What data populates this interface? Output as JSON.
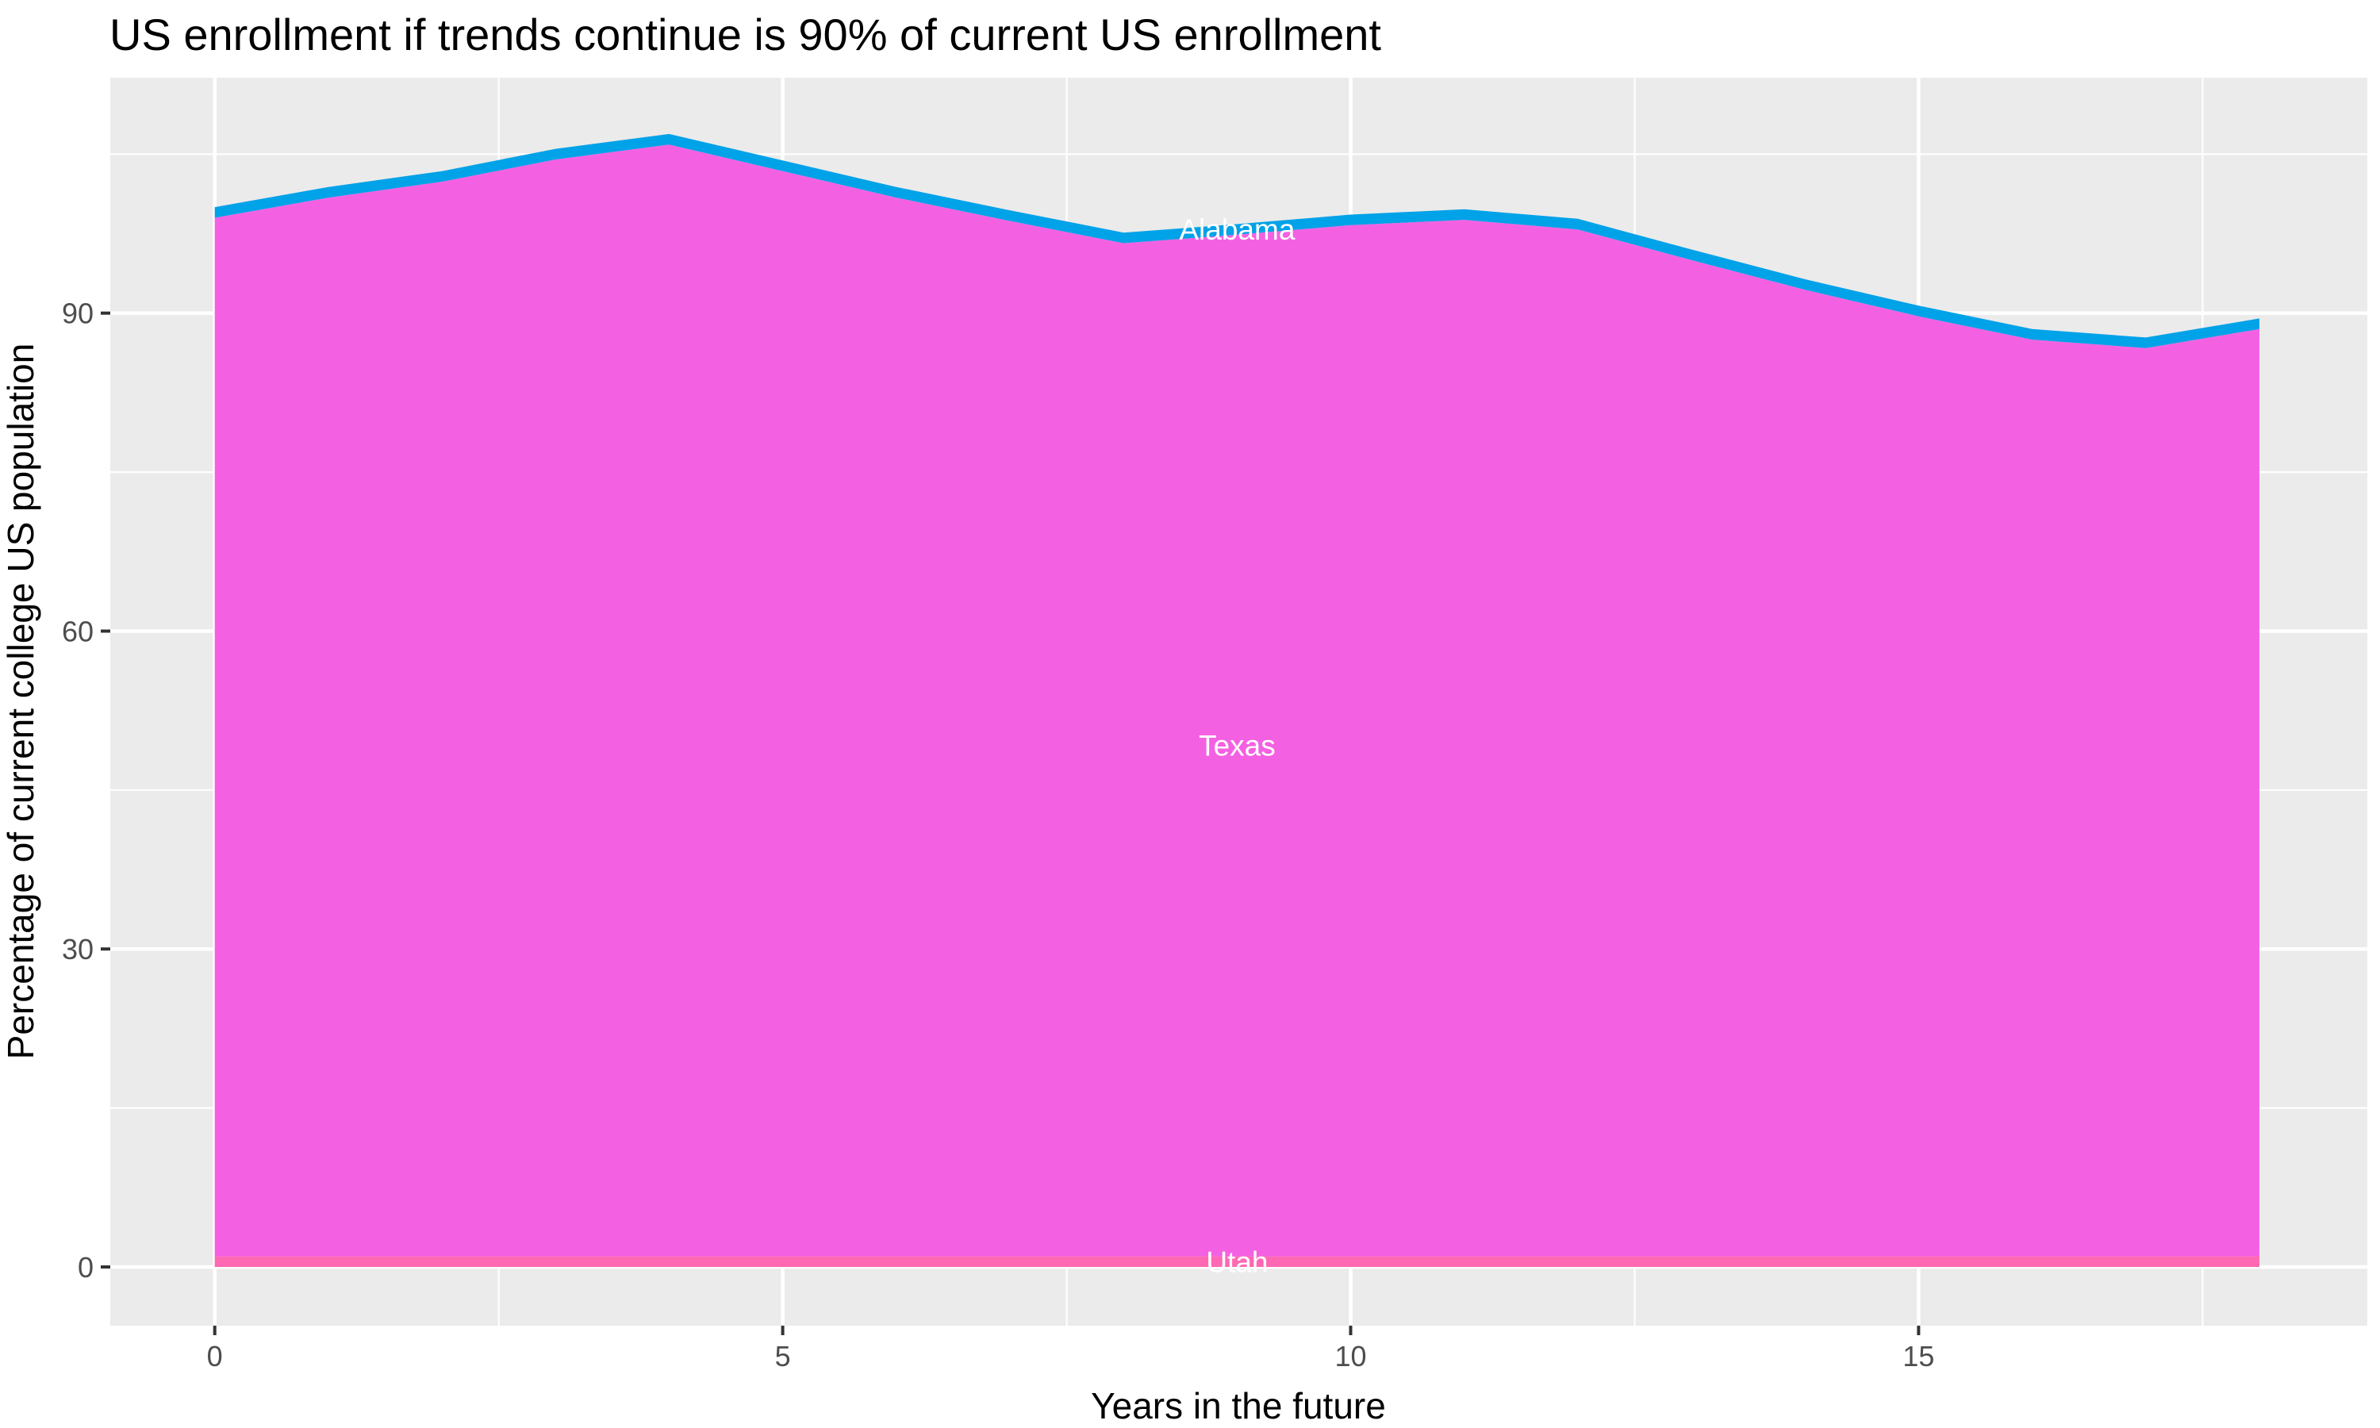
{
  "page": {
    "background": "#FFFFFF"
  },
  "chart_data": {
    "type": "area",
    "stacked": true,
    "title": "US enrollment if trends continue is 90% of current US enrollment",
    "xlabel": "Years in the future",
    "ylabel": "Percentage of current college US population",
    "x": [
      0,
      1,
      2,
      3,
      4,
      5,
      6,
      7,
      8,
      9,
      10,
      11,
      12,
      13,
      14,
      15,
      16,
      17,
      18
    ],
    "series": [
      {
        "name": "Utah",
        "color": "#FF68B3",
        "values": [
          1.0,
          1.0,
          1.0,
          1.0,
          1.0,
          1.0,
          1.0,
          1.0,
          1.0,
          1.0,
          1.0,
          1.0,
          1.0,
          1.0,
          1.0,
          1.0,
          1.0,
          1.0,
          1.0
        ]
      },
      {
        "name": "Texas",
        "color": "#F361E2",
        "values": [
          98.0,
          99.9,
          101.4,
          103.5,
          104.9,
          102.4,
          99.9,
          97.7,
          95.6,
          96.4,
          97.3,
          97.8,
          96.9,
          94.0,
          91.2,
          88.7,
          86.5,
          85.7,
          87.5
        ]
      },
      {
        "name": "Alabama",
        "color": "#00A2E8",
        "values": [
          1.0,
          1.0,
          1.0,
          1.0,
          1.0,
          1.0,
          1.0,
          1.0,
          1.0,
          1.0,
          1.0,
          1.0,
          1.0,
          1.0,
          1.0,
          1.0,
          1.0,
          1.0,
          1.0
        ]
      }
    ],
    "stack_totals": [
      100.0,
      101.9,
      103.4,
      105.5,
      106.9,
      104.4,
      101.9,
      99.7,
      97.6,
      98.4,
      99.3,
      99.8,
      98.9,
      96.0,
      93.2,
      90.7,
      88.5,
      87.7,
      89.5
    ],
    "series_label_x": 9,
    "series_label_color": "#FFFFFF",
    "x_axis": {
      "ticks": [
        0,
        5,
        10,
        15
      ],
      "tick_labels": [
        "0",
        "5",
        "10",
        "15"
      ],
      "minor": [
        2.5,
        7.5,
        12.5,
        17.5
      ],
      "lim": [
        -0.92,
        18.95
      ]
    },
    "y_axis": {
      "ticks": [
        0,
        30,
        60,
        90
      ],
      "tick_labels": [
        "0",
        "30",
        "60",
        "90"
      ],
      "minor": [
        15,
        45,
        75,
        105
      ],
      "lim": [
        -5.54,
        112.21
      ]
    },
    "colors": {
      "panel_bg": "#EBEBEB",
      "grid": "#FFFFFF",
      "tick": "#333333",
      "tick_label": "#4D4D4D",
      "title": "#000000"
    },
    "legend": "none",
    "grid": "on"
  }
}
